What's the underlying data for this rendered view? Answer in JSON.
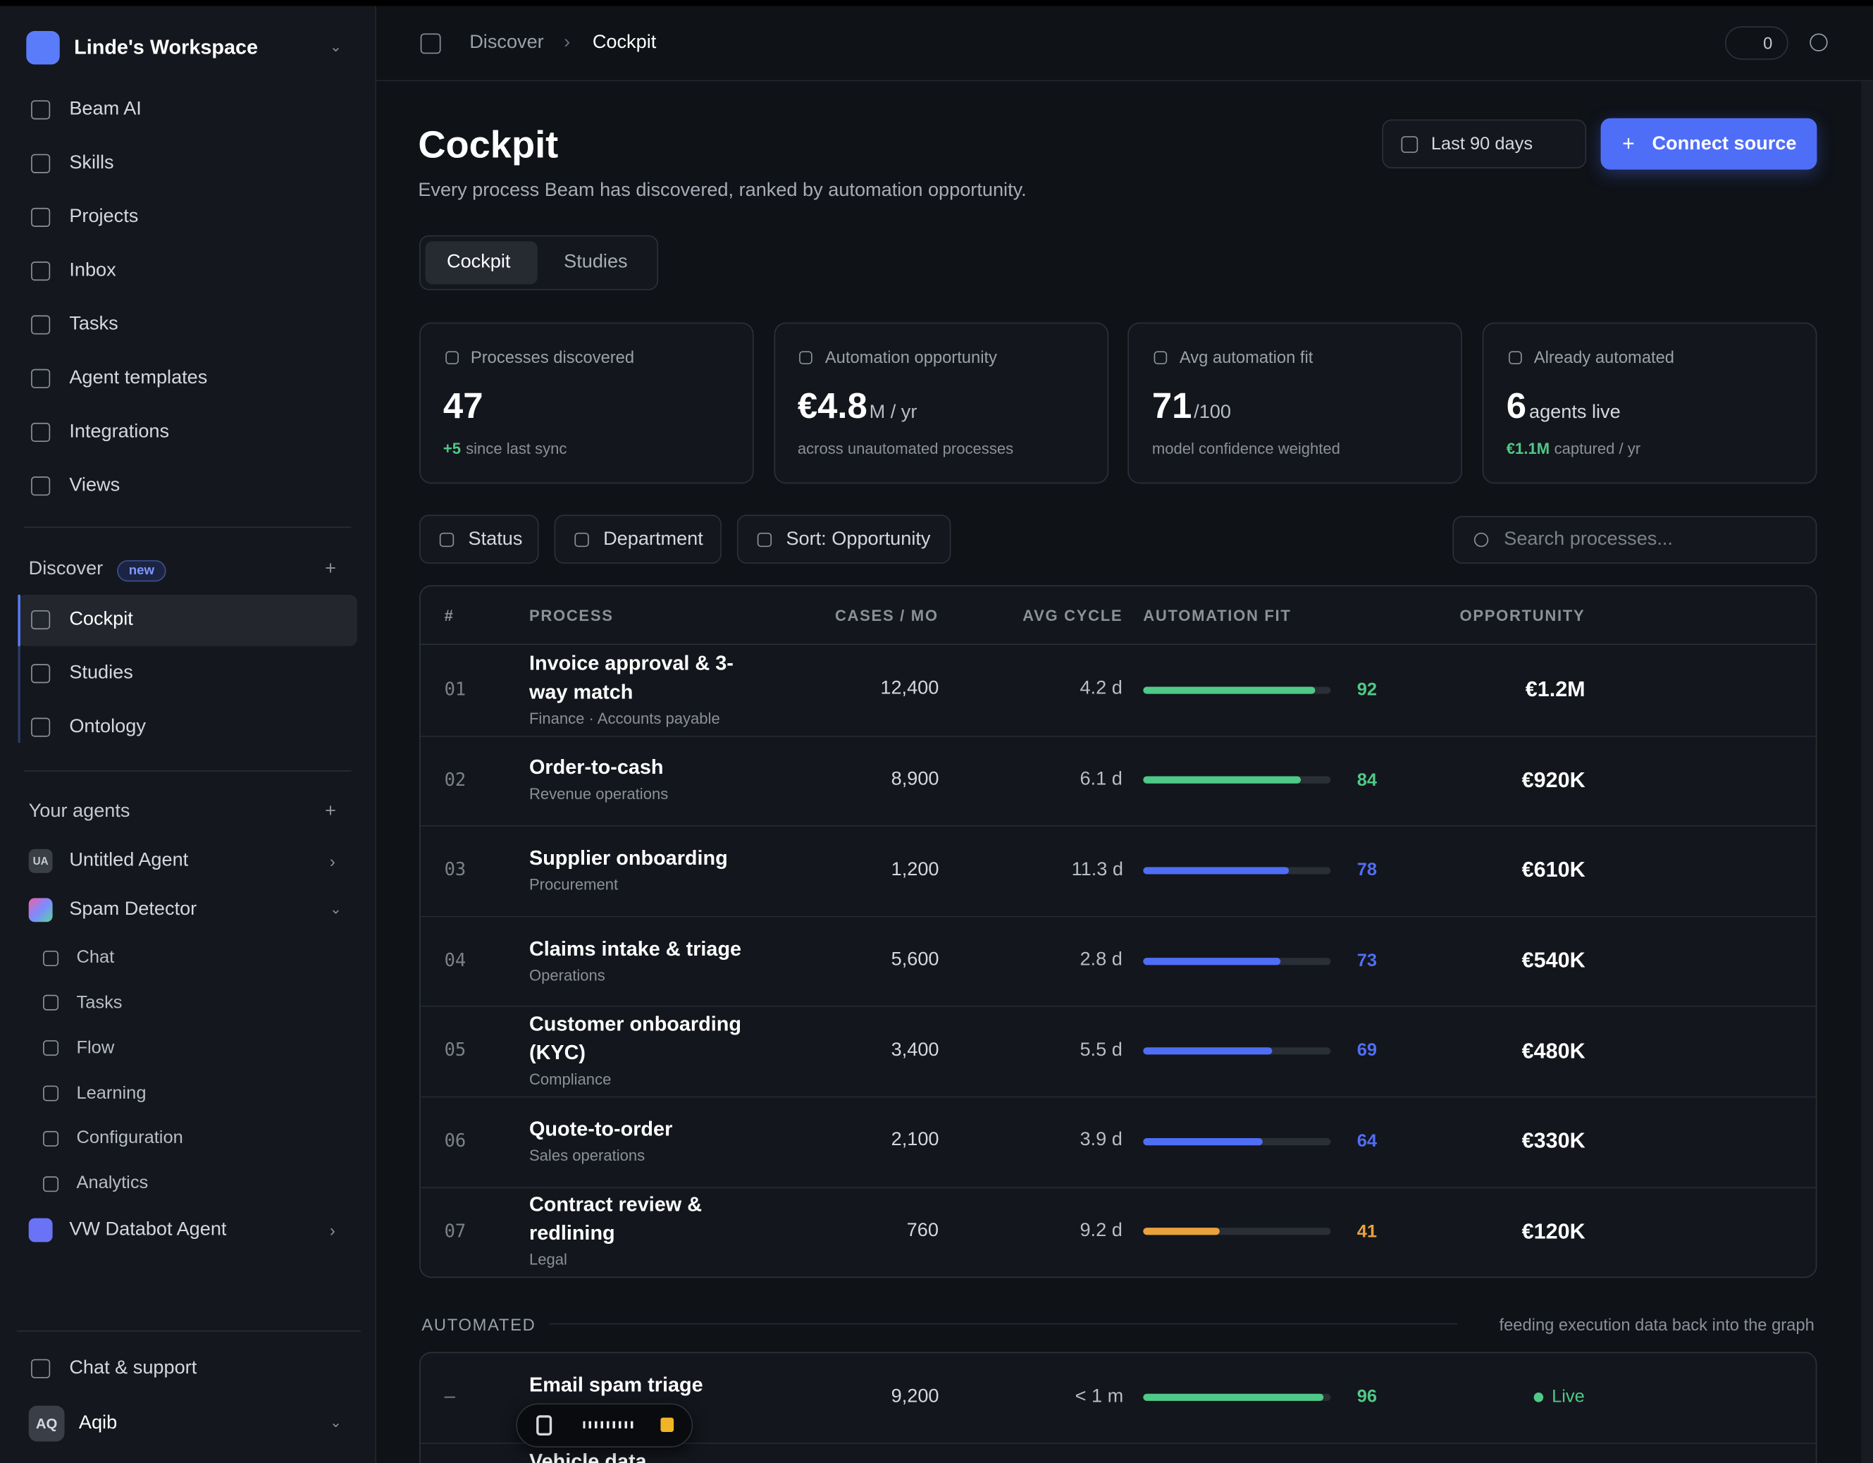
{
  "sidebar": {
    "workspace": "Linde's Workspace",
    "nav": [
      "Beam AI",
      "Skills",
      "Projects",
      "Inbox",
      "Tasks",
      "Agent templates",
      "Integrations",
      "Views"
    ],
    "discover": {
      "title": "Discover",
      "badge": "new",
      "items": [
        "Cockpit",
        "Studies",
        "Ontology"
      ]
    },
    "agents": {
      "title": "Your agents",
      "items": [
        {
          "initials": "UA",
          "name": "Untitled Agent"
        },
        {
          "name": "Spam Detector",
          "children": [
            "Chat",
            "Tasks",
            "Flow",
            "Learning",
            "Configuration",
            "Analytics"
          ]
        },
        {
          "name": "VW Databot Agent"
        }
      ]
    },
    "footer": {
      "support": "Chat & support",
      "user_initials": "AQ",
      "user": "Aqib"
    }
  },
  "topbar": {
    "breadcrumb": [
      "Discover",
      "Cockpit"
    ],
    "share_count": 0
  },
  "header": {
    "title": "Cockpit",
    "subtitle": "Every process Beam has discovered, ranked by automation opportunity.",
    "date_range": "Last 90 days",
    "connect": "Connect source"
  },
  "tabs": [
    "Cockpit",
    "Studies"
  ],
  "stats": [
    {
      "label": "Processes discovered",
      "value": 47,
      "delta": "+5",
      "note": "since last sync"
    },
    {
      "label": "Automation opportunity",
      "value": "€4.8",
      "unit": "M / yr",
      "note": "across unautomated processes"
    },
    {
      "label": "Avg automation fit",
      "value": 71,
      "unit": "/100",
      "note": "model confidence weighted"
    },
    {
      "label": "Already automated",
      "value": 6,
      "unit": "agents live",
      "delta": "€1.1M",
      "note": "captured / yr"
    }
  ],
  "filters": [
    "Status",
    "Department",
    "Sort: Opportunity"
  ],
  "search": "Search processes...",
  "table": {
    "columns": [
      "#",
      "PROCESS",
      "CASES / MO",
      "AVG CYCLE",
      "AUTOMATION FIT",
      "OPPORTUNITY"
    ],
    "fit_max": 100,
    "rows": [
      {
        "rank": "01",
        "name": "Invoice approval & 3-way match",
        "sub": "Finance · Accounts payable",
        "cases": "12,400",
        "cycle": "4.2 d",
        "fit": 92,
        "color": "#4fc987",
        "opportunity": "€1.2M"
      },
      {
        "rank": "02",
        "name": "Order-to-cash",
        "sub": "Revenue operations",
        "cases": "8,900",
        "cycle": "6.1 d",
        "fit": 84,
        "color": "#4fc987",
        "opportunity": "€920K"
      },
      {
        "rank": "03",
        "name": "Supplier onboarding",
        "sub": "Procurement",
        "cases": "1,200",
        "cycle": "11.3 d",
        "fit": 78,
        "color": "#4f6ef7",
        "opportunity": "€610K"
      },
      {
        "rank": "04",
        "name": "Claims intake & triage",
        "sub": "Operations",
        "cases": "5,600",
        "cycle": "2.8 d",
        "fit": 73,
        "color": "#4f6ef7",
        "opportunity": "€540K"
      },
      {
        "rank": "05",
        "name": "Customer onboarding (KYC)",
        "sub": "Compliance",
        "cases": "3,400",
        "cycle": "5.5 d",
        "fit": 69,
        "color": "#4f6ef7",
        "opportunity": "€480K"
      },
      {
        "rank": "06",
        "name": "Quote-to-order",
        "sub": "Sales operations",
        "cases": "2,100",
        "cycle": "3.9 d",
        "fit": 64,
        "color": "#4f6ef7",
        "opportunity": "€330K"
      },
      {
        "rank": "07",
        "name": "Contract review & redlining",
        "sub": "Legal",
        "cases": "760",
        "cycle": "9.2 d",
        "fit": 41,
        "color": "#e9a23b",
        "opportunity": "€120K"
      }
    ]
  },
  "automated": {
    "title": "AUTOMATED",
    "note": "feeding execution data back into the graph",
    "rows": [
      {
        "rank": "–",
        "name": "Email spam triage",
        "sub": "Spam Detector",
        "cases": "9,200",
        "cycle": "< 1 m",
        "fit": 96,
        "color": "#4fc987",
        "status": "Live"
      },
      {
        "name": "Vehicle data"
      }
    ]
  }
}
